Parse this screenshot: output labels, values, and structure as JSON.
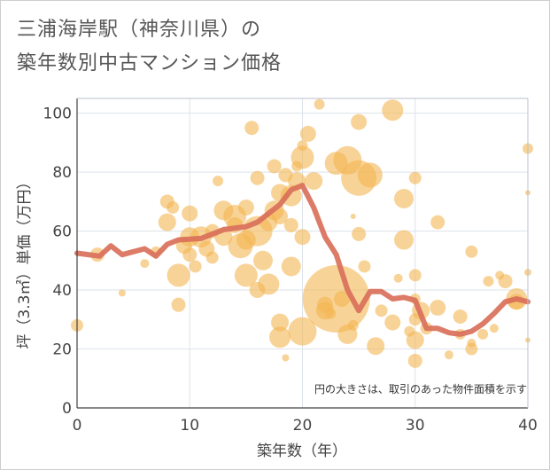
{
  "title_lines": [
    "三浦海岸駅（神奈川県）の",
    "築年数別中古マンション価格"
  ],
  "note": "円の大きさは、取引のあった物件面積を示す",
  "colors": {
    "bubble": "#f3b552",
    "line": "#d9705a",
    "grid": "#dde3ea",
    "axis": "#444444"
  },
  "chart_data": {
    "type": "scatter",
    "xlabel": "築年数（年）",
    "ylabel": "坪（3.3㎡）単価（万円）",
    "xlim": [
      0,
      40
    ],
    "ylim": [
      0,
      105
    ],
    "xticks": [
      0,
      10,
      20,
      30,
      40
    ],
    "yticks": [
      0,
      20,
      40,
      60,
      80,
      100
    ],
    "grid": true,
    "average_line": [
      [
        0,
        52.5
      ],
      [
        2,
        51.5
      ],
      [
        3,
        55
      ],
      [
        4,
        52
      ],
      [
        6,
        54
      ],
      [
        7,
        51.5
      ],
      [
        8,
        55.5
      ],
      [
        9,
        57
      ],
      [
        11,
        57.5
      ],
      [
        12,
        59
      ],
      [
        13,
        60.5
      ],
      [
        15,
        61.5
      ],
      [
        16,
        63
      ],
      [
        17,
        66
      ],
      [
        18,
        69
      ],
      [
        19,
        74
      ],
      [
        20,
        75.5
      ],
      [
        21,
        68
      ],
      [
        22,
        58
      ],
      [
        23,
        52
      ],
      [
        24,
        40
      ],
      [
        25,
        33
      ],
      [
        26,
        39.5
      ],
      [
        27,
        39.5
      ],
      [
        28,
        37
      ],
      [
        29,
        37.5
      ],
      [
        30,
        36.5
      ],
      [
        31,
        27
      ],
      [
        32,
        27
      ],
      [
        33,
        25.5
      ],
      [
        34,
        25
      ],
      [
        35,
        26
      ],
      [
        36,
        28.5
      ],
      [
        37,
        32
      ],
      [
        38,
        36
      ],
      [
        39,
        37
      ],
      [
        40,
        36
      ]
    ],
    "bubbles": [
      [
        0,
        28,
        7
      ],
      [
        1.8,
        52,
        8
      ],
      [
        4,
        39,
        4
      ],
      [
        6,
        49,
        5
      ],
      [
        7,
        53,
        6
      ],
      [
        8,
        70,
        8
      ],
      [
        8,
        63,
        10
      ],
      [
        8.5,
        68,
        7
      ],
      [
        9,
        35,
        8
      ],
      [
        9,
        45,
        13
      ],
      [
        9.5,
        55,
        9
      ],
      [
        10,
        58,
        11
      ],
      [
        10,
        52,
        8
      ],
      [
        10,
        66,
        9
      ],
      [
        10.5,
        48,
        7
      ],
      [
        11,
        58,
        12
      ],
      [
        11.5,
        54,
        9
      ],
      [
        12,
        51,
        7
      ],
      [
        12,
        60,
        8
      ],
      [
        12.5,
        77,
        6
      ],
      [
        13,
        58,
        10
      ],
      [
        13,
        67,
        11
      ],
      [
        14,
        65,
        13
      ],
      [
        14.5,
        55,
        14
      ],
      [
        14,
        62,
        9
      ],
      [
        15,
        45,
        13
      ],
      [
        15,
        57,
        11
      ],
      [
        15,
        68,
        9
      ],
      [
        15.5,
        95,
        8
      ],
      [
        16,
        60,
        17
      ],
      [
        16,
        40,
        9
      ],
      [
        16.5,
        50,
        11
      ],
      [
        16,
        78,
        8
      ],
      [
        17,
        42,
        12
      ],
      [
        17,
        63,
        10
      ],
      [
        17.5,
        67,
        11
      ],
      [
        17.5,
        82,
        8
      ],
      [
        18,
        29,
        10
      ],
      [
        18,
        24,
        12
      ],
      [
        18,
        65,
        9
      ],
      [
        18,
        73,
        10
      ],
      [
        18.5,
        79,
        8
      ],
      [
        18.5,
        17,
        4
      ],
      [
        19,
        72,
        12
      ],
      [
        19,
        62,
        8
      ],
      [
        19.5,
        77,
        10
      ],
      [
        19,
        48,
        11
      ],
      [
        19.5,
        82,
        6
      ],
      [
        20,
        26,
        16
      ],
      [
        20,
        58,
        9
      ],
      [
        20,
        85,
        13
      ],
      [
        20,
        89,
        6
      ],
      [
        20.5,
        93,
        9
      ],
      [
        21,
        77,
        10
      ],
      [
        21.5,
        103,
        6
      ],
      [
        22,
        35,
        9
      ],
      [
        22,
        33,
        10
      ],
      [
        22.5,
        32,
        6
      ],
      [
        23,
        37,
        38
      ],
      [
        23,
        83,
        13
      ],
      [
        23.5,
        37,
        9
      ],
      [
        24,
        84,
        16
      ],
      [
        24,
        25,
        11
      ],
      [
        24.5,
        28,
        6
      ],
      [
        24.5,
        65,
        3
      ],
      [
        25,
        78,
        20
      ],
      [
        25,
        97,
        9
      ],
      [
        25,
        59,
        8
      ],
      [
        25.5,
        48,
        7
      ],
      [
        26,
        79,
        14
      ],
      [
        26.5,
        21,
        10
      ],
      [
        27,
        33,
        7
      ],
      [
        28,
        29,
        9
      ],
      [
        28,
        101,
        12
      ],
      [
        28.5,
        44,
        5
      ],
      [
        29,
        71,
        11
      ],
      [
        29,
        57,
        11
      ],
      [
        29.5,
        26,
        6
      ],
      [
        30,
        78,
        7
      ],
      [
        30,
        37,
        6
      ],
      [
        30,
        30,
        7
      ],
      [
        30,
        23,
        10
      ],
      [
        30,
        16,
        8
      ],
      [
        30,
        45,
        7
      ],
      [
        30.5,
        33,
        10
      ],
      [
        31,
        27,
        7
      ],
      [
        32,
        63,
        8
      ],
      [
        32,
        34,
        9
      ],
      [
        33,
        18,
        5
      ],
      [
        34,
        31,
        8
      ],
      [
        34,
        25,
        6
      ],
      [
        35,
        53,
        7
      ],
      [
        35,
        22,
        5
      ],
      [
        35,
        20,
        7
      ],
      [
        36,
        25,
        6
      ],
      [
        36.5,
        43,
        6
      ],
      [
        37,
        27,
        5
      ],
      [
        37.5,
        45,
        5
      ],
      [
        38,
        43,
        8
      ],
      [
        39,
        37,
        12
      ],
      [
        39,
        36,
        9
      ],
      [
        40,
        88,
        6
      ],
      [
        40,
        46,
        4
      ],
      [
        40,
        73,
        3
      ],
      [
        40,
        23,
        3
      ]
    ]
  }
}
